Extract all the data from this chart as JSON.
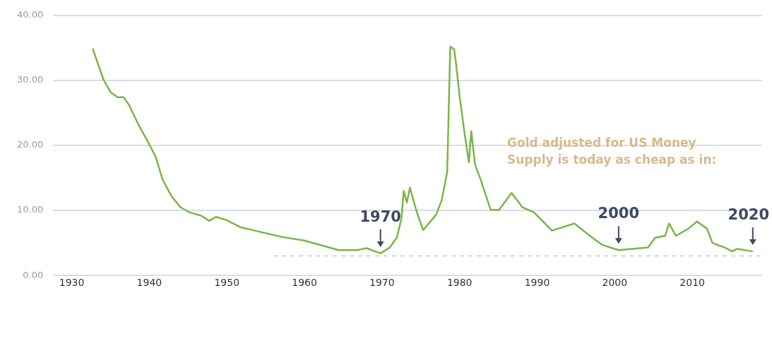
{
  "chart_data": {
    "type": "line",
    "xlim": [
      1927.6,
      2019
    ],
    "ylim": [
      0,
      40
    ],
    "xticks": [
      1930,
      1940,
      1950,
      1960,
      1970,
      1980,
      1990,
      2000,
      2010
    ],
    "yticks": [
      {
        "value": 0,
        "label": "0.00"
      },
      {
        "value": 10,
        "label": "10.00"
      },
      {
        "value": 20,
        "label": "20.00"
      },
      {
        "value": 30,
        "label": "30.00"
      },
      {
        "value": 40,
        "label": "40.00"
      }
    ],
    "grid": "y",
    "legend": false,
    "marker": "none",
    "line_style": "solid",
    "series": [
      {
        "color": "#7ab648",
        "x": [
          1932.7,
          1934.1,
          1935.0,
          1935.9,
          1936.7,
          1937.4,
          1938.6,
          1939.8,
          1940.8,
          1941.7,
          1942.8,
          1944.0,
          1945.2,
          1946.7,
          1947.7,
          1948.6,
          1950.0,
          1951.8,
          1953.6,
          1955.4,
          1957.2,
          1959.9,
          1964.4,
          1966.8,
          1968.0,
          1969.8,
          1971.0,
          1971.9,
          1972.5,
          1972.8,
          1973.2,
          1973.6,
          1974.5,
          1975.3,
          1976.1,
          1977.0,
          1977.7,
          1978.4,
          1978.8,
          1979.3,
          1979.5,
          1980.0,
          1980.6,
          1981.2,
          1981.5,
          1982.0,
          1982.7,
          1984.0,
          1985.1,
          1986.7,
          1988.1,
          1989.6,
          1991.9,
          1994.8,
          1996.8,
          1998.4,
          2000.5,
          2004.3,
          2005.2,
          2006.5,
          2007.0,
          2007.9,
          2009.5,
          2010.6,
          2011.9,
          2012.6,
          2014.2,
          2015.1,
          2015.8,
          2017.8
        ],
        "values": [
          34.9,
          30.1,
          28.2,
          27.4,
          27.4,
          26.2,
          23.2,
          20.6,
          18.3,
          14.8,
          12.3,
          10.5,
          9.7,
          9.2,
          8.4,
          9.0,
          8.5,
          7.4,
          6.9,
          6.4,
          5.9,
          5.4,
          3.9,
          3.9,
          4.2,
          3.4,
          4.3,
          5.8,
          8.7,
          13.0,
          11.2,
          13.5,
          9.7,
          7.0,
          8.1,
          9.4,
          11.6,
          15.9,
          35.2,
          34.8,
          33.0,
          27.6,
          22.2,
          17.4,
          22.2,
          17.0,
          14.8,
          10.1,
          10.1,
          12.7,
          10.5,
          9.7,
          6.9,
          8.0,
          6.1,
          4.7,
          3.9,
          4.3,
          5.8,
          6.1,
          8.0,
          6.1,
          7.2,
          8.3,
          7.2,
          5.0,
          4.3,
          3.7,
          4.1,
          3.7
        ]
      },
      {
        "color": "#c8c8c8",
        "line_style": "dashed",
        "x": [
          1956,
          2019
        ],
        "values": [
          3,
          3
        ]
      }
    ],
    "annotations": [
      "Gold adjusted for US Money Supply is today as cheap as in:",
      {
        "text": "1970",
        "x": 1969.8,
        "y": 3.4
      },
      {
        "text": "2000",
        "x": 2000.5,
        "y": 3.9
      },
      {
        "text": "2020",
        "x": 2017.8,
        "y": 3.7
      }
    ]
  }
}
